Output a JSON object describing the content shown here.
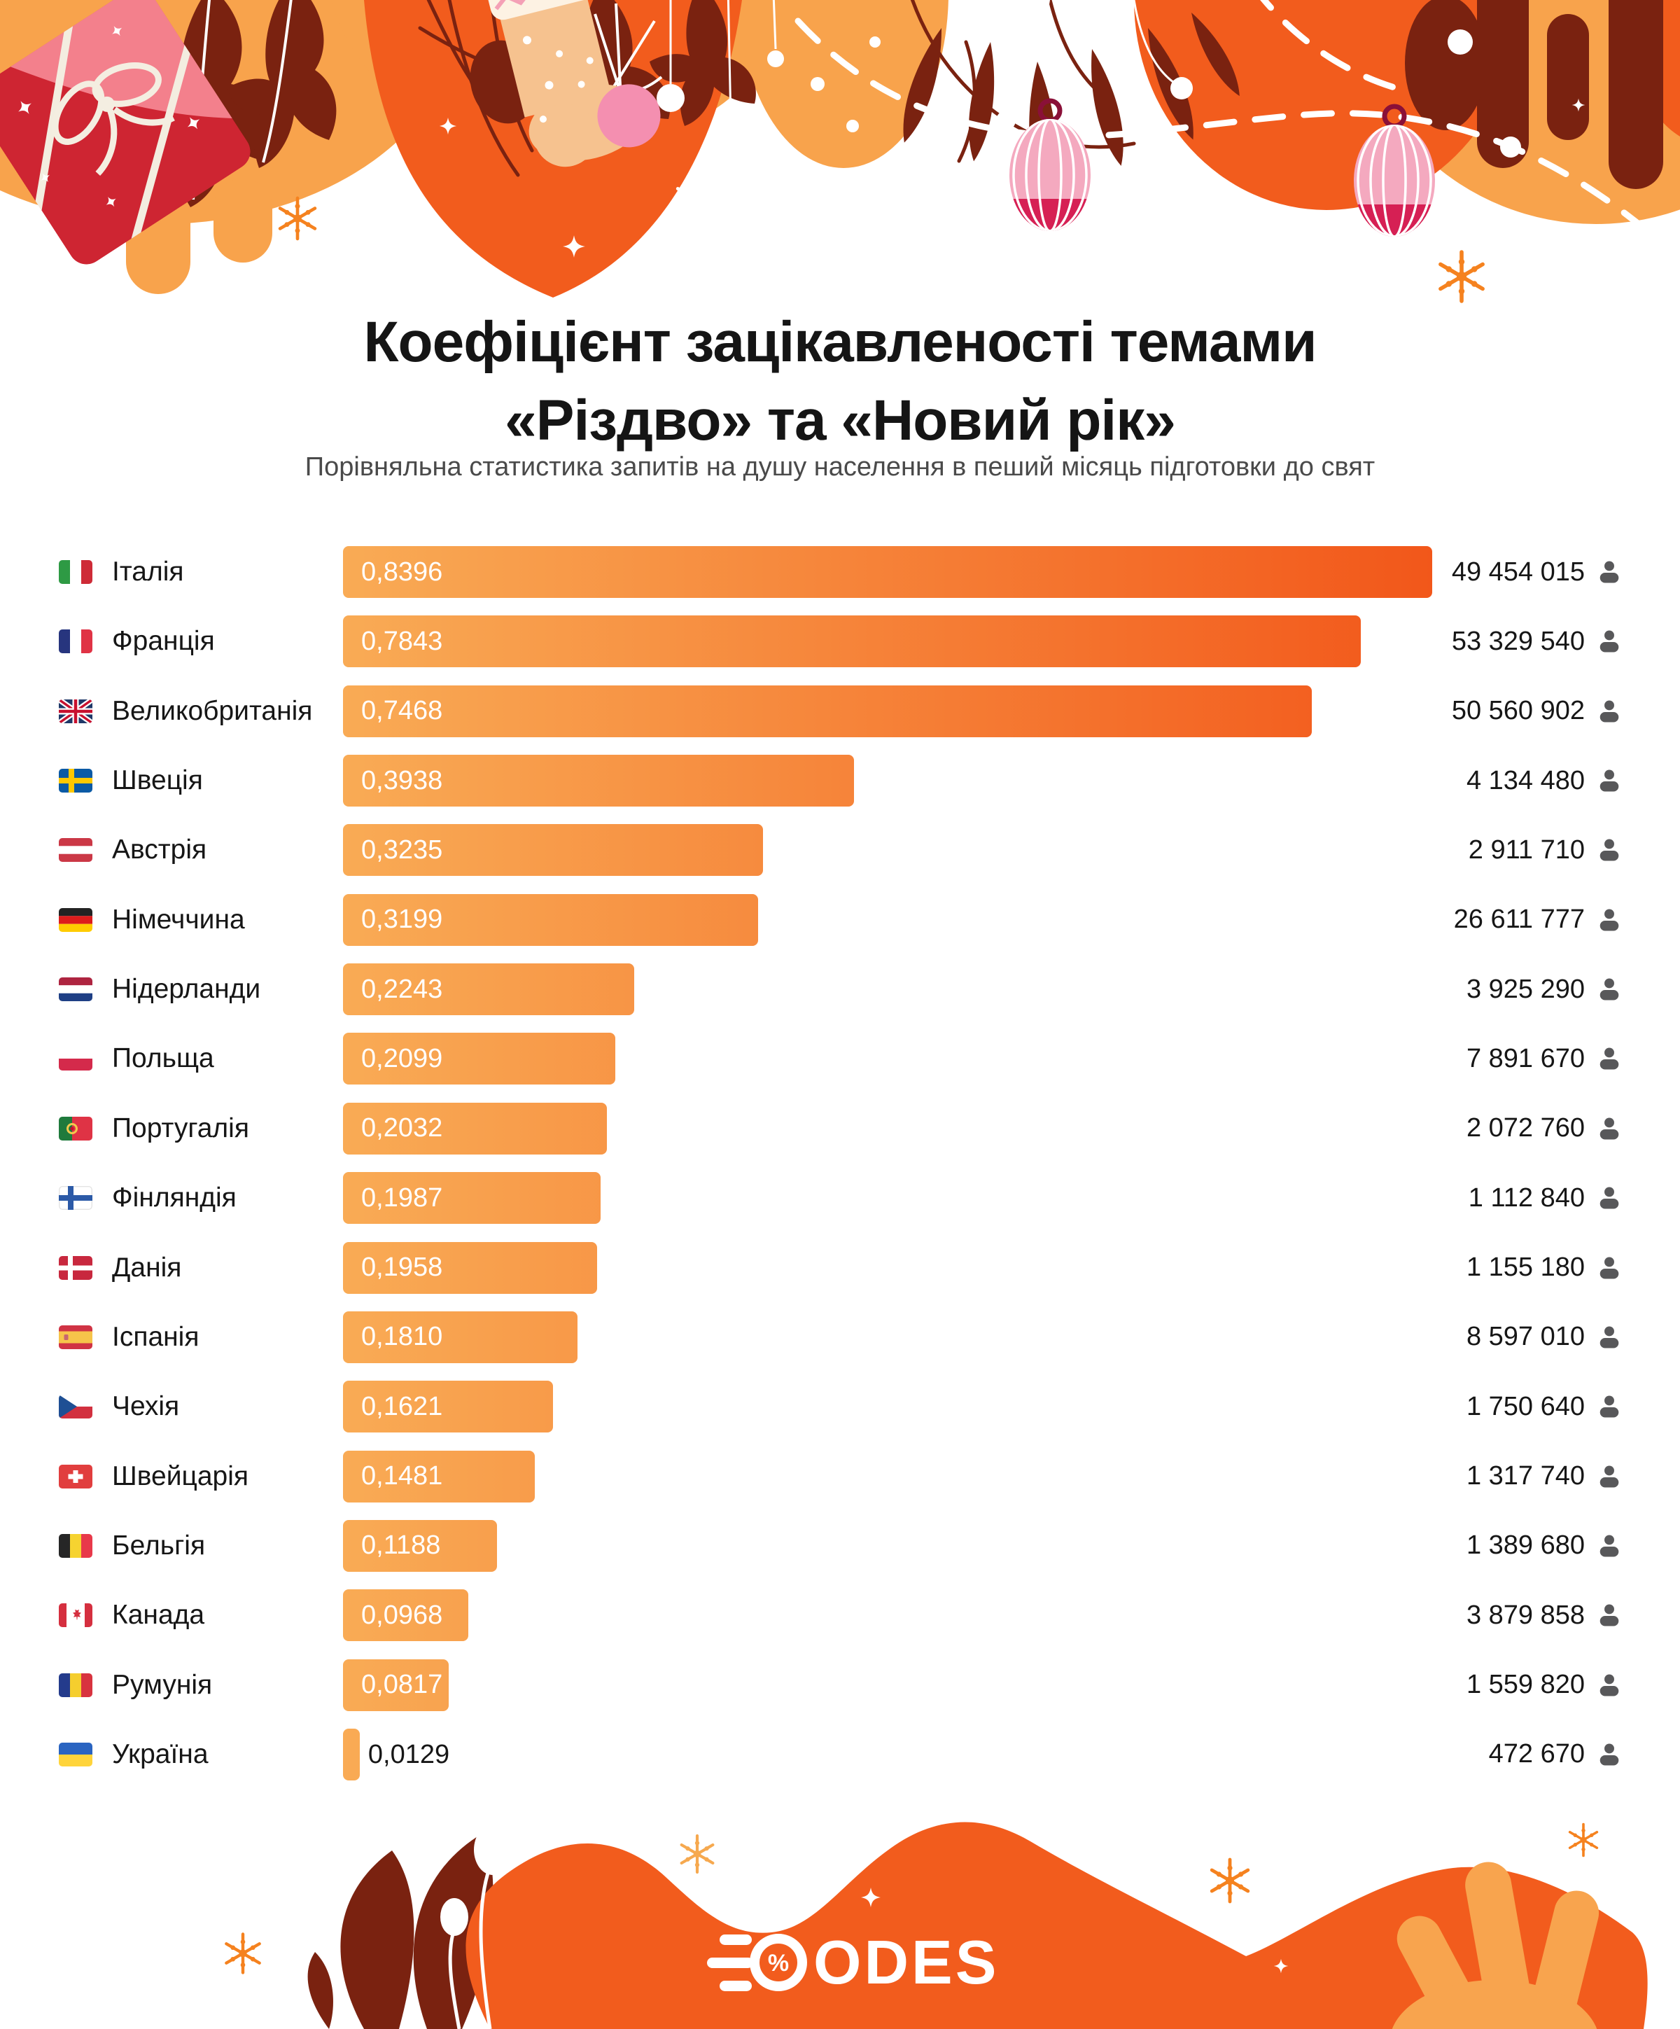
{
  "header": {
    "title_line1": "Коефіцієнт зацікавленості темами",
    "title_line2": "«Різдво» та «Новий рік»",
    "subtitle": "Порівняльна статистика запитів на душу населення в пеший місяць підготовки до свят"
  },
  "chart_data": {
    "type": "bar",
    "orientation": "horizontal",
    "title": "Коефіцієнт зацікавленості темами «Різдво» та «Новий рік»",
    "subtitle": "Порівняльна статистика запитів на душу населення в пеший місяць підготовки до свят",
    "value_format": "comma-decimal",
    "max_value": 0.8396,
    "bar_gradient": [
      "#F9AB55",
      "#F2571A"
    ],
    "population_icon": "person-icon",
    "rows": [
      {
        "country": "Італія",
        "flag": "it",
        "value": 0.8396,
        "value_label": "0,8396",
        "population": "49 454 015"
      },
      {
        "country": "Франція",
        "flag": "fr",
        "value": 0.7843,
        "value_label": "0,7843",
        "population": "53 329 540"
      },
      {
        "country": "Великобританія",
        "flag": "gb",
        "value": 0.7468,
        "value_label": "0,7468",
        "population": "50 560 902"
      },
      {
        "country": "Швеція",
        "flag": "se",
        "value": 0.3938,
        "value_label": "0,3938",
        "population": "4 134 480"
      },
      {
        "country": "Австрія",
        "flag": "at",
        "value": 0.3235,
        "value_label": "0,3235",
        "population": "2 911 710"
      },
      {
        "country": "Німеччина",
        "flag": "de",
        "value": 0.3199,
        "value_label": "0,3199",
        "population": "26 611 777"
      },
      {
        "country": "Нідерланди",
        "flag": "nl",
        "value": 0.2243,
        "value_label": "0,2243",
        "population": "3 925 290"
      },
      {
        "country": "Польща",
        "flag": "pl",
        "value": 0.2099,
        "value_label": "0,2099",
        "population": "7 891 670"
      },
      {
        "country": "Португалія",
        "flag": "pt",
        "value": 0.2032,
        "value_label": "0,2032",
        "population": "2 072 760"
      },
      {
        "country": "Фінляндія",
        "flag": "fi",
        "value": 0.1987,
        "value_label": "0,1987",
        "population": "1 112 840"
      },
      {
        "country": "Данія",
        "flag": "dk",
        "value": 0.1958,
        "value_label": "0,1958",
        "population": "1 155 180"
      },
      {
        "country": "Іспанія",
        "flag": "es",
        "value": 0.181,
        "value_label": "0,1810",
        "population": "8 597 010"
      },
      {
        "country": "Чехія",
        "flag": "cz",
        "value": 0.1621,
        "value_label": "0,1621",
        "population": "1 750 640"
      },
      {
        "country": "Швейцарія",
        "flag": "ch",
        "value": 0.1481,
        "value_label": "0,1481",
        "population": "1 317 740"
      },
      {
        "country": "Бельгія",
        "flag": "be",
        "value": 0.1188,
        "value_label": "0,1188",
        "population": "1 389 680"
      },
      {
        "country": "Канада",
        "flag": "ca",
        "value": 0.0968,
        "value_label": "0,0968",
        "population": "3 879 858"
      },
      {
        "country": "Румунія",
        "flag": "ro",
        "value": 0.0817,
        "value_label": "0,0817",
        "population": "1 559 820"
      },
      {
        "country": "Україна",
        "flag": "ua",
        "value": 0.0129,
        "value_label": "0,0129",
        "population": "472 670"
      }
    ]
  },
  "footer": {
    "brand_text": "ODES",
    "brand_mark_percent": "%"
  },
  "colors": {
    "accent_orange": "#F25C1D",
    "light_orange": "#F8A44E",
    "maroon": "#7A2210",
    "bar_text": "#FFFFFF",
    "label_text": "#161616",
    "subtitle_text": "#4A4A4A"
  }
}
